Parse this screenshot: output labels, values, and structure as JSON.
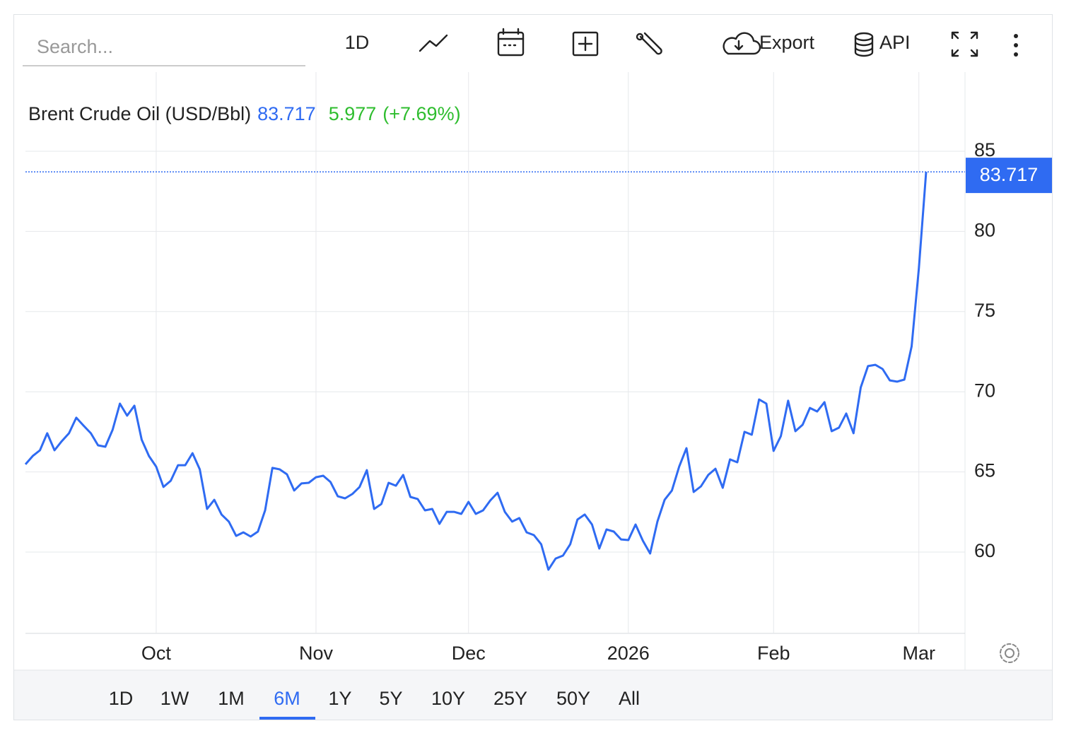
{
  "toolbar": {
    "search_placeholder": "Search...",
    "interval": "1D",
    "export": "Export",
    "api": "API"
  },
  "chart_data": {
    "type": "line",
    "title": "Brent Crude Oil (USD/Bbl)",
    "price": 83.717,
    "change": 5.977,
    "change_percent": {
      "value": 7.69,
      "label": "(+7.69%)"
    },
    "color": "#2f6bf2",
    "categories": [
      null,
      null,
      null,
      null,
      null,
      null,
      null,
      null,
      null,
      null,
      null,
      null,
      null,
      null,
      null,
      null,
      null,
      null,
      "Oct",
      null,
      null,
      null,
      null,
      null,
      null,
      null,
      null,
      null,
      null,
      null,
      null,
      null,
      null,
      null,
      null,
      null,
      null,
      null,
      null,
      null,
      "Nov",
      null,
      null,
      null,
      null,
      null,
      null,
      null,
      null,
      null,
      null,
      null,
      null,
      null,
      null,
      null,
      null,
      null,
      null,
      null,
      null,
      "Dec",
      null,
      null,
      null,
      null,
      null,
      null,
      null,
      null,
      null,
      null,
      null,
      null,
      null,
      null,
      null,
      null,
      null,
      null,
      null,
      null,
      null,
      "2026",
      null,
      null,
      null,
      null,
      null,
      null,
      null,
      null,
      null,
      null,
      null,
      null,
      null,
      null,
      null,
      null,
      null,
      null,
      null,
      "Feb",
      null,
      null,
      null,
      null,
      null,
      null,
      null,
      null,
      null,
      null,
      null,
      null,
      null,
      null,
      null,
      null,
      null,
      null,
      null,
      "Mar",
      null
    ],
    "values": [
      65.47,
      65.99,
      66.35,
      67.41,
      66.35,
      66.92,
      67.41,
      68.38,
      67.89,
      67.41,
      66.66,
      66.57,
      67.63,
      69.26,
      68.51,
      69.13,
      67.01,
      65.99,
      65.33,
      64.06,
      64.45,
      65.42,
      65.42,
      66.17,
      65.16,
      62.69,
      63.26,
      62.34,
      61.9,
      61.01,
      61.23,
      60.97,
      61.28,
      62.6,
      65.25,
      65.16,
      64.85,
      63.84,
      64.28,
      64.32,
      64.67,
      64.76,
      64.37,
      63.48,
      63.35,
      63.62,
      64.06,
      65.11,
      62.69,
      63.0,
      64.32,
      64.14,
      64.81,
      63.44,
      63.31,
      62.6,
      62.69,
      61.76,
      62.51,
      62.51,
      62.38,
      63.13,
      62.38,
      62.6,
      63.22,
      63.7,
      62.51,
      61.9,
      62.12,
      61.23,
      61.06,
      60.49,
      58.9,
      59.6,
      59.78,
      60.49,
      62.03,
      62.34,
      61.72,
      60.22,
      61.41,
      61.28,
      60.79,
      60.75,
      61.72,
      60.71,
      59.91,
      61.9,
      63.26,
      63.84,
      65.33,
      66.48,
      63.75,
      64.1,
      64.81,
      65.2,
      64.01,
      65.78,
      65.6,
      67.5,
      67.32,
      69.52,
      69.26,
      66.31,
      67.23,
      69.44,
      67.54,
      67.94,
      68.99,
      68.77,
      69.35,
      67.54,
      67.76,
      68.64,
      67.41,
      70.27,
      71.6,
      71.68,
      71.42,
      70.71,
      70.63,
      70.76,
      72.83,
      77.68,
      83.717
    ],
    "ylim": [
      55,
      90
    ],
    "yticks": [
      60,
      65,
      70,
      75,
      80,
      85
    ],
    "grid": true
  },
  "range_selector": {
    "options": [
      "1D",
      "1W",
      "1M",
      "6M",
      "1Y",
      "5Y",
      "10Y",
      "25Y",
      "50Y",
      "All"
    ],
    "selected": "6M"
  }
}
